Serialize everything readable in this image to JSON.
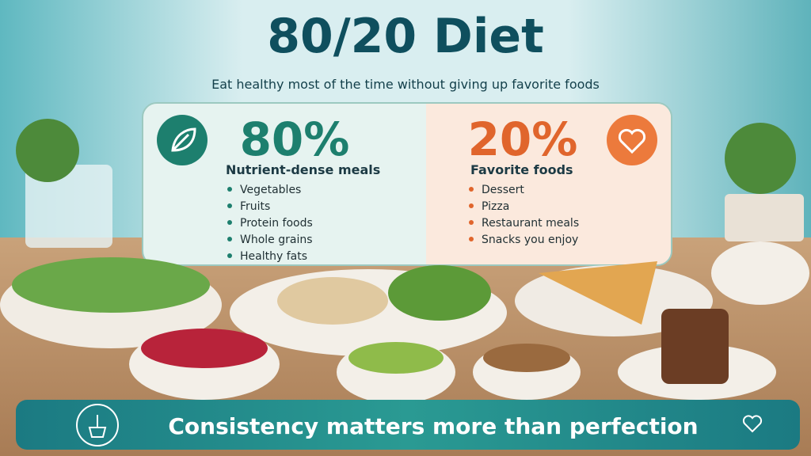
{
  "header": {
    "title": "80/20 Diet",
    "subtitle": "Eat healthy most of the time without giving up favorite foods"
  },
  "panels": [
    {
      "percent": "80%",
      "heading": "Nutrient-dense meals",
      "items": [
        "Vegetables",
        "Fruits",
        "Protein foods",
        "Whole grains",
        "Healthy fats"
      ]
    },
    {
      "percent": "20%",
      "heading": "Favorite foods",
      "items": [
        "Dessert",
        "Pizza",
        "Restaurant meals",
        "Snacks you enjoy"
      ]
    }
  ],
  "footer": {
    "text": "Consistency matters more than perfection"
  }
}
